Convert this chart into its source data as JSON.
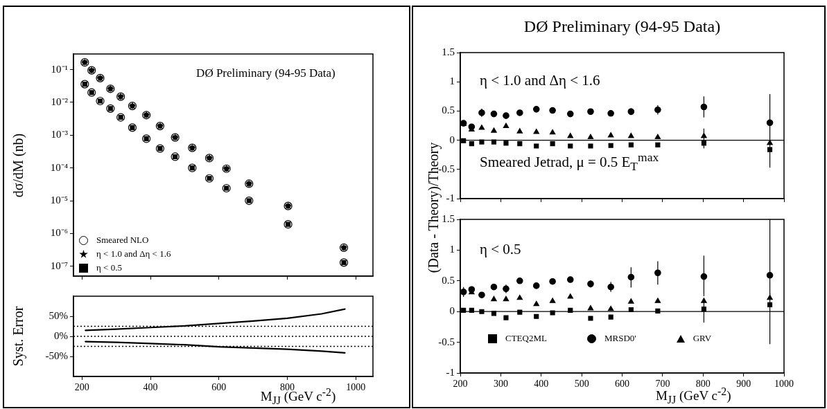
{
  "chart_data": [
    {
      "type": "scatter",
      "ylabel": "dσ/dM (nb)",
      "annotations": [
        "DØ Preliminary (94-95 Data)"
      ],
      "log": "y",
      "legend": "bottom left",
      "tick_labels": "y",
      "xlim": [
        175,
        1050
      ],
      "xticks": [
        200,
        400,
        600,
        800,
        1000
      ],
      "ylim": [
        5e-08,
        0.3
      ],
      "yticks": [
        {
          "value": 0.1,
          "label": "10⁻¹"
        },
        {
          "value": 0.01,
          "label": "10⁻²"
        },
        {
          "value": 0.001,
          "label": "10⁻³"
        },
        {
          "value": 0.0001,
          "label": "10⁻⁴"
        },
        {
          "value": 1e-05,
          "label": "10⁻⁵"
        },
        {
          "value": 1e-06,
          "label": "10⁻⁶"
        },
        {
          "value": 1e-07,
          "label": "10⁻⁷"
        }
      ],
      "x": [
        208,
        228,
        253,
        283,
        313,
        347,
        388,
        428,
        472,
        522,
        572,
        622,
        688,
        802,
        965
      ],
      "series": [
        {
          "name": "Smeared NLO",
          "color": "#ffffff",
          "marker": "circle",
          "x": [
            208,
            228,
            253,
            283,
            313,
            347,
            388,
            428,
            472,
            522,
            572,
            622,
            688,
            802,
            965,
            208,
            228,
            253,
            283,
            313,
            347,
            388,
            428,
            472,
            522,
            572,
            622,
            688,
            802,
            965
          ],
          "values": [
            0.166,
            0.095,
            0.055,
            0.026,
            0.015,
            0.0078,
            0.0041,
            0.0019,
            0.00085,
            0.00041,
            0.0002,
            9.5e-05,
            3.3e-05,
            6.9e-06,
            3.7e-07,
            0.036,
            0.02,
            0.011,
            0.0065,
            0.0035,
            0.0017,
            0.00078,
            0.00039,
            0.00022,
            0.0001,
            4.8e-05,
            2.4e-05,
            1e-05,
            1.9e-06,
            1.3e-07
          ]
        },
        {
          "name": "η < 1.0 and Δη < 1.6",
          "color": "#000000",
          "marker": "star",
          "values": [
            0.166,
            0.095,
            0.055,
            0.026,
            0.015,
            0.0078,
            0.0041,
            0.0019,
            0.00085,
            0.00041,
            0.0002,
            9.5e-05,
            3.3e-05,
            6.9e-06,
            3.7e-07
          ]
        },
        {
          "name": "η < 0.5",
          "color": "#000000",
          "marker": "square",
          "values": [
            0.036,
            0.02,
            0.011,
            0.0065,
            0.0035,
            0.0017,
            0.00078,
            0.00039,
            0.00022,
            0.0001,
            4.8e-05,
            2.4e-05,
            1e-05,
            1.9e-06,
            1.3e-07
          ]
        }
      ]
    },
    {
      "type": "line",
      "ylabel": "Syst. Error",
      "xlabel": "M$_{JJ}$ (GeV c$^{-2}$)",
      "xlim": [
        175,
        1050
      ],
      "xticks": [
        200,
        400,
        600,
        800,
        1000
      ],
      "ylim": [
        -100,
        100
      ],
      "yticks": [
        {
          "value": -50,
          "label": "-50%"
        },
        {
          "value": 0,
          "label": "0%"
        },
        {
          "value": 50,
          "label": "50%"
        }
      ],
      "marker": "none",
      "x": [
        210,
        300,
        400,
        500,
        600,
        700,
        800,
        900,
        968
      ],
      "series": [
        {
          "color": "#000000",
          "values": [
            15,
            18,
            22,
            26,
            32,
            38,
            45,
            56,
            68
          ]
        },
        {
          "color": "#000000",
          "values": [
            -13,
            -15,
            -18,
            -21,
            -26,
            -29,
            -32,
            -37,
            -41
          ]
        }
      ],
      "ref_lines": [
        {
          "axis": "y",
          "value": 25,
          "line_style": "dotted"
        },
        {
          "axis": "y",
          "value": 0,
          "line_style": "dotted"
        },
        {
          "axis": "y",
          "value": -25,
          "line_style": "dotted"
        }
      ]
    },
    {
      "type": "scatter",
      "title": "DØ Preliminary (94-95 Data)",
      "ylabel": "(Data - Theory)/Theory",
      "annotations": [
        "η < 1.0 and Δη < 1.6",
        "Smeared Jetrad, μ = 0.5 E$_{T}$$^{max}$"
      ],
      "tick_labels": "y",
      "xlim": [
        200,
        1000
      ],
      "xticks": [
        200,
        300,
        400,
        500,
        600,
        700,
        800,
        900,
        1000
      ],
      "ylim": [
        -1,
        1.5
      ],
      "yticks": [
        -1,
        -0.5,
        0,
        0.5,
        1,
        1.5
      ],
      "x": [
        208,
        228,
        253,
        283,
        313,
        347,
        388,
        428,
        472,
        522,
        572,
        622,
        688,
        802,
        965
      ],
      "series": [
        {
          "color": "#000000",
          "marker": "square",
          "values": [
            -0.01,
            -0.06,
            -0.03,
            -0.03,
            -0.05,
            -0.06,
            -0.1,
            -0.06,
            -0.1,
            -0.1,
            -0.09,
            -0.08,
            -0.08,
            -0.05,
            -0.16
          ]
        },
        {
          "color": "#000000",
          "marker": "circle",
          "values": [
            0.29,
            0.23,
            0.47,
            0.45,
            0.42,
            0.47,
            0.53,
            0.51,
            0.45,
            0.49,
            0.46,
            0.49,
            0.52,
            0.57,
            0.3
          ],
          "errors": [
            null,
            null,
            0.07,
            null,
            null,
            null,
            null,
            null,
            null,
            null,
            0.05,
            0.06,
            0.08,
            [
              0.39,
              0.75
            ],
            [
              -0.47,
              0.79
            ]
          ]
        },
        {
          "color": "#000000",
          "marker": "triangle",
          "values": [
            0.28,
            0.18,
            0.21,
            0.16,
            0.24,
            0.15,
            0.14,
            0.13,
            0.07,
            0.05,
            0.08,
            0.07,
            0.05,
            0.07,
            -0.05
          ],
          "errors": [
            null,
            null,
            null,
            null,
            null,
            null,
            null,
            null,
            null,
            null,
            null,
            null,
            null,
            [
              -0.14,
              0.2
            ],
            null
          ]
        }
      ],
      "ref_lines": [
        {
          "axis": "y",
          "value": 0,
          "line_style": "solid"
        }
      ]
    },
    {
      "type": "scatter",
      "xlabel": "M$_{JJ}$ (GeV c$^{-2}$)",
      "annotations": [
        "η < 0.5"
      ],
      "legend": "bottom",
      "xlim": [
        200,
        1000
      ],
      "xticks": [
        200,
        300,
        400,
        500,
        600,
        700,
        800,
        900,
        1000
      ],
      "ylim": [
        -1,
        1.5
      ],
      "yticks": [
        -1,
        -0.5,
        0,
        0.5,
        1,
        1.5
      ],
      "x": [
        208,
        228,
        253,
        283,
        313,
        347,
        388,
        428,
        472,
        522,
        572,
        622,
        688,
        802,
        965
      ],
      "series": [
        {
          "name": "CTEQ2ML",
          "color": "#000000",
          "marker": "square",
          "values": [
            0.02,
            0.02,
            0,
            -0.03,
            -0.1,
            -0.01,
            -0.08,
            -0.02,
            0.02,
            -0.11,
            -0.09,
            0.03,
            0.01,
            0.04,
            0.11
          ],
          "errors": [
            null,
            null,
            null,
            null,
            null,
            null,
            null,
            null,
            null,
            null,
            null,
            null,
            null,
            [
              -0.18,
              0.17
            ],
            [
              -0.53,
              0.3
            ]
          ]
        },
        {
          "name": "MRSD0'",
          "color": "#000000",
          "marker": "circle",
          "values": [
            0.32,
            0.36,
            0.27,
            0.4,
            0.37,
            0.5,
            0.42,
            0.49,
            0.52,
            0.45,
            0.4,
            0.56,
            0.63,
            0.57,
            0.59
          ],
          "errors": [
            0.08,
            null,
            null,
            null,
            0.07,
            null,
            null,
            null,
            null,
            0.06,
            0.08,
            [
              0.39,
              0.72
            ],
            [
              0.44,
              0.82
            ],
            [
              0.25,
              0.91
            ],
            [
              0.2,
              1.5
            ]
          ]
        },
        {
          "name": "GRV",
          "color": "#000000",
          "marker": "triangle",
          "values": [
            null,
            0.31,
            null,
            0.2,
            0.2,
            0.22,
            0.12,
            0.17,
            0.24,
            0.05,
            0.04,
            0.16,
            0.17,
            0.17,
            0.22
          ]
        }
      ],
      "ref_lines": [
        {
          "axis": "y",
          "value": 0,
          "line_style": "solid"
        }
      ]
    }
  ]
}
